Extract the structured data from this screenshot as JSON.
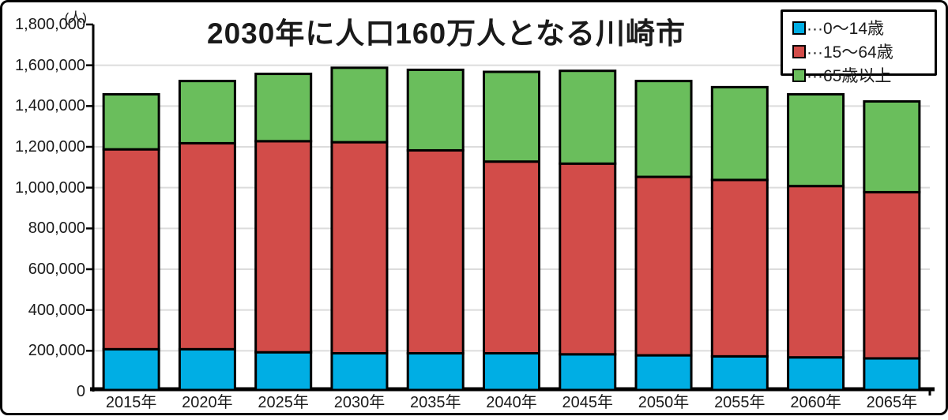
{
  "title": "2030年に人口160万人となる川崎市",
  "y_axis": {
    "unit": "(人)",
    "tick_labels": [
      "1,800,000",
      "1,600,000",
      "1,400,000",
      "1,200,000",
      "1,000,000",
      "800,000",
      "600,000",
      "400,000",
      "200,000",
      "0"
    ]
  },
  "legend": {
    "position": "top-right",
    "items": [
      {
        "label": "···0〜14歳",
        "color": "#00AEE4"
      },
      {
        "label": "···15〜64歳",
        "color": "#D24C49"
      },
      {
        "label": "···65歳以上",
        "color": "#6ABE5C"
      }
    ]
  },
  "colors": {
    "background": "#FFFFFF",
    "frame": "#000000",
    "axis": "#000000",
    "grid": "#DCDCDC",
    "bar_border": "#000000"
  },
  "chart_data": {
    "type": "bar",
    "stacked": true,
    "title": "2030年に人口160万人となる川崎市",
    "xlabel": "",
    "ylabel": "(人)",
    "ylim": [
      0,
      1800000
    ],
    "ytick_step": 200000,
    "grid": true,
    "legend_position": "top-right",
    "categories": [
      "2015年",
      "2020年",
      "2025年",
      "2030年",
      "2035年",
      "2040年",
      "2045年",
      "2050年",
      "2055年",
      "2060年",
      "2065年"
    ],
    "series": [
      {
        "name": "0〜14歳",
        "color": "#00AEE4",
        "values": [
          200000,
          200000,
          185000,
          180000,
          180000,
          180000,
          175000,
          170000,
          165000,
          160000,
          155000
        ]
      },
      {
        "name": "15〜64歳",
        "color": "#D24C49",
        "values": [
          980000,
          1010000,
          1035000,
          1035000,
          995000,
          940000,
          935000,
          875000,
          865000,
          840000,
          815000
        ]
      },
      {
        "name": "65歳以上",
        "color": "#6ABE5C",
        "values": [
          270000,
          305000,
          330000,
          365000,
          395000,
          440000,
          455000,
          470000,
          455000,
          450000,
          445000
        ]
      }
    ],
    "totals": [
      1450000,
      1515000,
      1550000,
      1580000,
      1570000,
      1560000,
      1565000,
      1515000,
      1485000,
      1450000,
      1415000
    ]
  }
}
